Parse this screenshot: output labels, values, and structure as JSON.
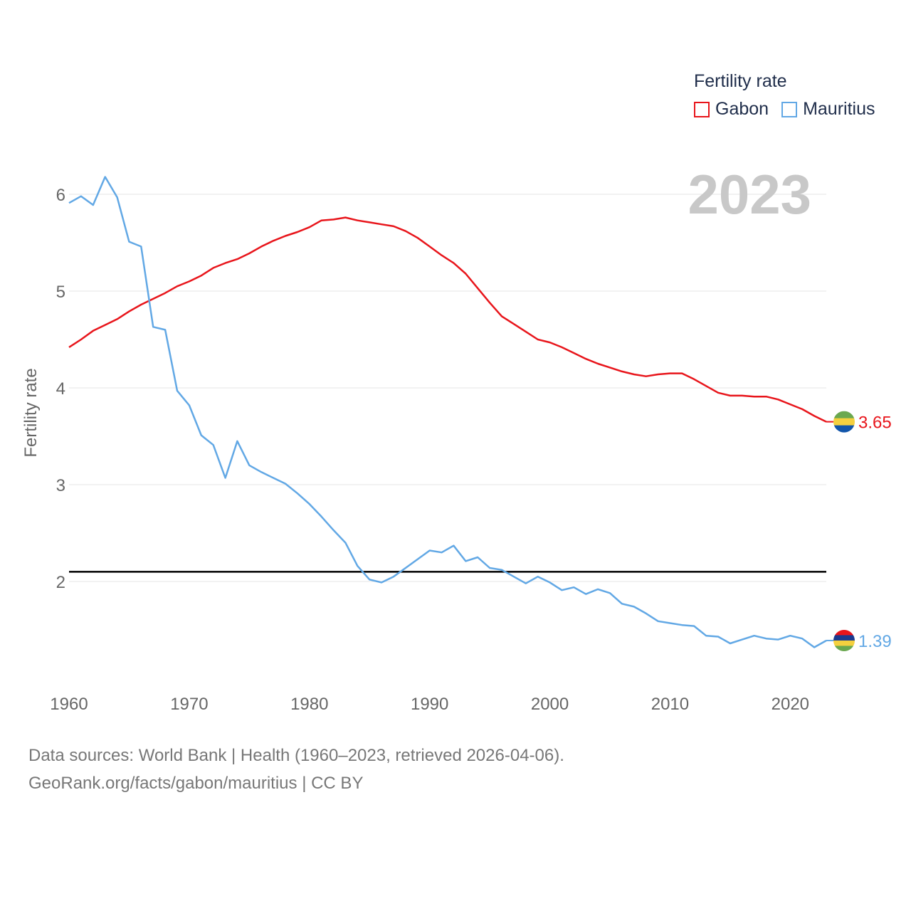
{
  "legend": {
    "title": "Fertility rate"
  },
  "footer": {
    "line1": "Data sources: World Bank | Health (1960–2023, retrieved 2026-04-06).",
    "line2": "GeoRank.org/facts/gabon/mauritius | CC BY"
  },
  "chart_data": {
    "type": "line",
    "title": "",
    "year_label": "2023",
    "xlabel": "",
    "ylabel": "Fertility rate",
    "xlim": [
      1960,
      2023
    ],
    "ylim": [
      1,
      6.5
    ],
    "x_ticks": [
      1960,
      1970,
      1980,
      1990,
      2000,
      2010,
      2020
    ],
    "y_ticks": [
      2,
      3,
      4,
      5,
      6
    ],
    "reference_line": {
      "value": 2.1,
      "color": "#000000"
    },
    "x": [
      1960,
      1961,
      1962,
      1963,
      1964,
      1965,
      1966,
      1967,
      1968,
      1969,
      1970,
      1971,
      1972,
      1973,
      1974,
      1975,
      1976,
      1977,
      1978,
      1979,
      1980,
      1981,
      1982,
      1983,
      1984,
      1985,
      1986,
      1987,
      1988,
      1989,
      1990,
      1991,
      1992,
      1993,
      1994,
      1995,
      1996,
      1997,
      1998,
      1999,
      2000,
      2001,
      2002,
      2003,
      2004,
      2005,
      2006,
      2007,
      2008,
      2009,
      2010,
      2011,
      2012,
      2013,
      2014,
      2015,
      2016,
      2017,
      2018,
      2019,
      2020,
      2021,
      2022,
      2023
    ],
    "series": [
      {
        "name": "Gabon",
        "color": "#e8151b",
        "end_label": "3.65",
        "flag_icon": "gabon-flag-icon",
        "values": [
          4.42,
          4.5,
          4.59,
          4.65,
          4.71,
          4.79,
          4.86,
          4.92,
          4.98,
          5.05,
          5.1,
          5.16,
          5.24,
          5.29,
          5.33,
          5.39,
          5.46,
          5.52,
          5.57,
          5.61,
          5.66,
          5.73,
          5.74,
          5.76,
          5.73,
          5.71,
          5.69,
          5.67,
          5.62,
          5.55,
          5.46,
          5.37,
          5.29,
          5.18,
          5.03,
          4.88,
          4.74,
          4.66,
          4.58,
          4.5,
          4.47,
          4.42,
          4.36,
          4.3,
          4.25,
          4.21,
          4.17,
          4.14,
          4.12,
          4.14,
          4.15,
          4.15,
          4.09,
          4.02,
          3.95,
          3.92,
          3.92,
          3.91,
          3.91,
          3.88,
          3.83,
          3.78,
          3.71,
          3.65
        ]
      },
      {
        "name": "Mauritius",
        "color": "#62a8e5",
        "end_label": "1.39",
        "flag_icon": "mauritius-flag-icon",
        "values": [
          5.91,
          5.98,
          5.89,
          6.18,
          5.97,
          5.51,
          5.46,
          4.63,
          4.6,
          3.97,
          3.82,
          3.51,
          3.41,
          3.07,
          3.45,
          3.2,
          3.13,
          3.07,
          3.01,
          2.91,
          2.8,
          2.67,
          2.53,
          2.4,
          2.16,
          2.02,
          1.99,
          2.05,
          2.14,
          2.23,
          2.32,
          2.3,
          2.37,
          2.21,
          2.25,
          2.14,
          2.12,
          2.05,
          1.98,
          2.05,
          1.99,
          1.91,
          1.94,
          1.87,
          1.92,
          1.88,
          1.77,
          1.74,
          1.67,
          1.59,
          1.57,
          1.55,
          1.54,
          1.44,
          1.43,
          1.36,
          1.4,
          1.44,
          1.41,
          1.4,
          1.44,
          1.41,
          1.32,
          1.39
        ]
      }
    ]
  }
}
